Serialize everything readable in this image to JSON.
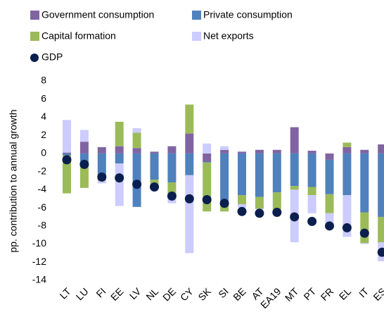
{
  "chart_data": {
    "type": "bar",
    "y_label": "pp. contribution to annual growth",
    "categories": [
      "LT",
      "LU",
      "FI",
      "EE",
      "LV",
      "NL",
      "DE",
      "CY",
      "SK",
      "SI",
      "BE",
      "AT",
      "EA19",
      "MT",
      "PT",
      "FR",
      "EL",
      "IT",
      "ES"
    ],
    "series": [
      {
        "name": "Government  consumption",
        "color": "#8064a2",
        "values": [
          0.1,
          1.3,
          0.7,
          0.8,
          0.6,
          0.2,
          0.8,
          2.2,
          -0.9,
          0.4,
          0.2,
          0.4,
          0.4,
          2.9,
          0.3,
          -0.7,
          0.7,
          0.4,
          1.0
        ]
      },
      {
        "name": "Private consumption",
        "color": "#4f81bd",
        "values": [
          -0.2,
          -1.5,
          -2.7,
          -1.1,
          -5.9,
          -2.9,
          -3.2,
          -2.4,
          -0.1,
          -5.8,
          -4.6,
          -4.8,
          -4.3,
          -3.6,
          -3.7,
          -3.8,
          -4.6,
          -6.5,
          -7.0
        ]
      },
      {
        "name": "Capital formation",
        "color": "#9bbb59",
        "values": [
          -4.2,
          -2.3,
          -0.3,
          2.7,
          1.7,
          -0.6,
          -1.8,
          3.2,
          -5.4,
          -0.6,
          -1.0,
          -1.3,
          -1.9,
          -0.4,
          -0.9,
          -2.1,
          0.5,
          -3.4,
          -2.8
        ]
      },
      {
        "name": "Net exports",
        "color": "#ccccff",
        "values": [
          3.6,
          1.3,
          -0.3,
          -4.7,
          0.5,
          -0.2,
          -0.5,
          -8.6,
          1.1,
          0.4,
          -0.4,
          -0.1,
          -0.2,
          -5.8,
          -2.0,
          -1.4,
          -4.6,
          -0.1,
          -2.1
        ]
      }
    ],
    "gdp": {
      "name": "GDP",
      "color": "#0b1f4e",
      "values": [
        -0.7,
        -1.2,
        -2.6,
        -2.7,
        -3.4,
        -3.7,
        -4.7,
        -5.0,
        -5.1,
        -5.5,
        -6.4,
        -6.6,
        -6.5,
        -7.0,
        -7.5,
        -8.0,
        -8.2,
        -8.8,
        -10.9
      ]
    },
    "ylim": [
      -14,
      8
    ],
    "yticks": [
      -14,
      -12,
      -10,
      -8,
      -6,
      -4,
      -2,
      0,
      2,
      4,
      6,
      8
    ],
    "grid": false
  }
}
